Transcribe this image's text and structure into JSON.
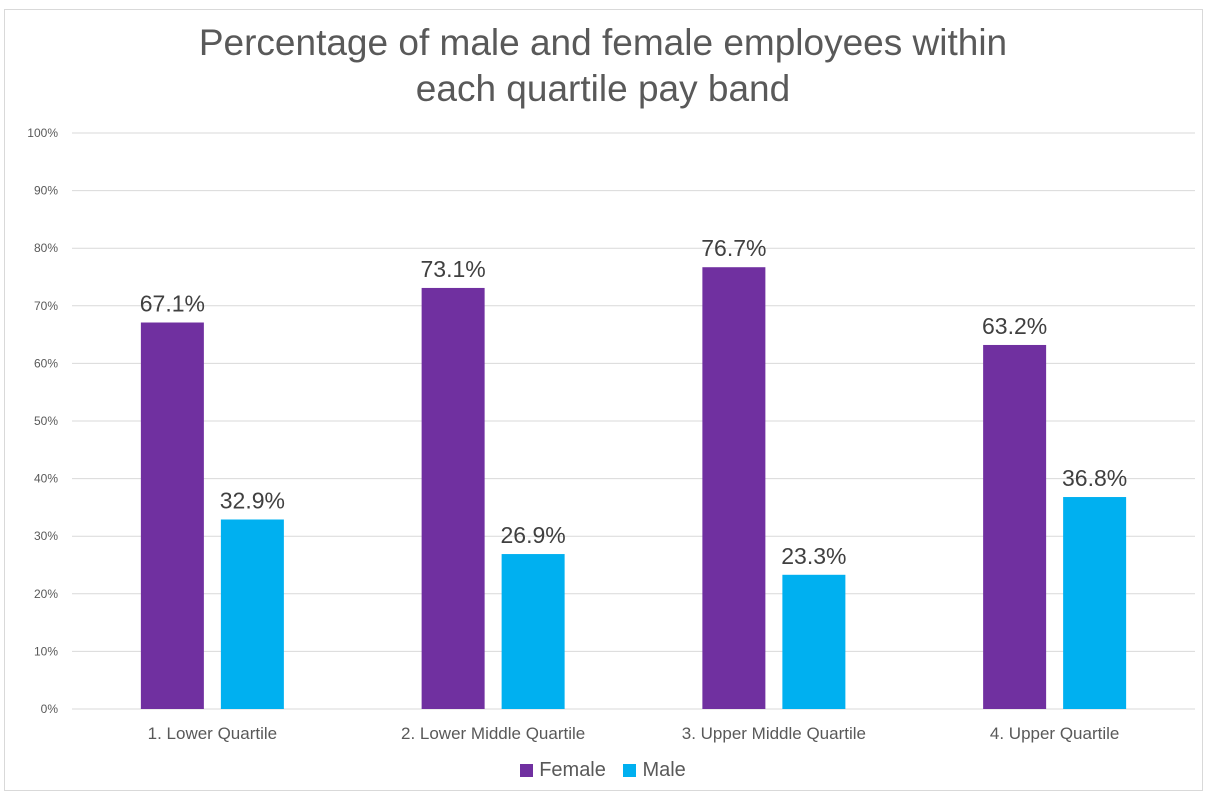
{
  "chart_data": {
    "type": "bar",
    "title": [
      "Percentage of male and female employees within",
      "each quartile pay band"
    ],
    "categories": [
      "1. Lower Quartile",
      "2. Lower Middle Quartile",
      "3. Upper Middle Quartile",
      "4. Upper Quartile"
    ],
    "series": [
      {
        "name": "Female",
        "color": "#7030a0",
        "values": [
          67.1,
          73.1,
          76.7,
          63.2
        ],
        "labels": [
          "67.1%",
          "73.1%",
          "76.7%",
          "63.2%"
        ]
      },
      {
        "name": "Male",
        "color": "#00b0f0",
        "values": [
          32.9,
          26.9,
          23.3,
          36.8
        ],
        "labels": [
          "32.9%",
          "26.9%",
          "23.3%",
          "36.8%"
        ]
      }
    ],
    "ylim": [
      0,
      100
    ],
    "yticks": [
      0,
      10,
      20,
      30,
      40,
      50,
      60,
      70,
      80,
      90,
      100
    ],
    "ytick_labels": [
      "0%",
      "10%",
      "20%",
      "30%",
      "40%",
      "50%",
      "60%",
      "70%",
      "80%",
      "90%",
      "100%"
    ],
    "grid": true,
    "legend": "bottom"
  }
}
